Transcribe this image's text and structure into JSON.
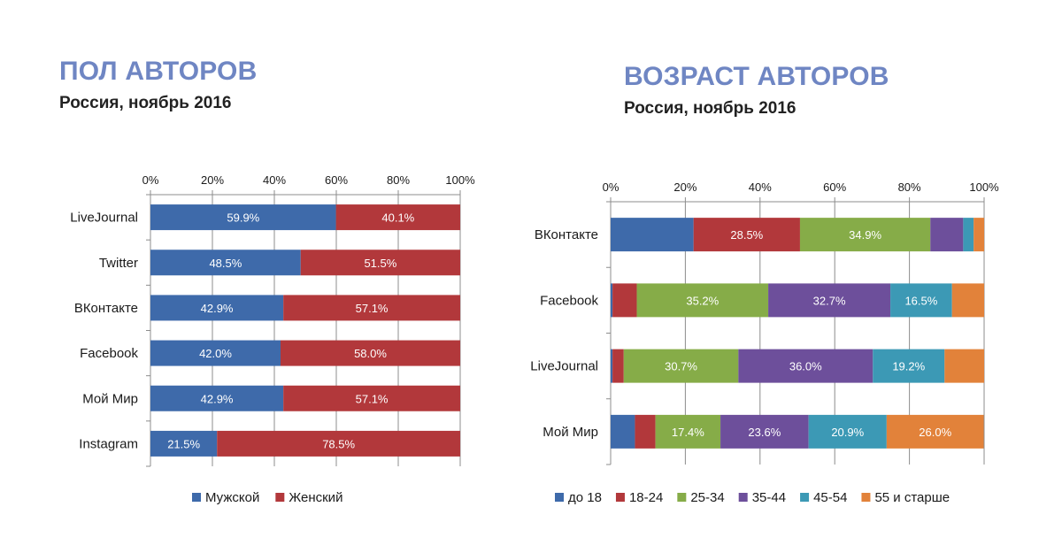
{
  "chart_data": [
    {
      "type": "bar",
      "orientation": "horizontal",
      "stacked": true,
      "title": "ПОЛ АВТОРОВ",
      "subtitle": "Россия, ноябрь 2016",
      "x_ticks": [
        "0%",
        "20%",
        "40%",
        "60%",
        "80%",
        "100%"
      ],
      "xlim": [
        0,
        100
      ],
      "x_axis_position": "top",
      "grid": true,
      "legend": "bottom",
      "categories": [
        "LiveJournal",
        "Twitter",
        "ВКонтакте",
        "Facebook",
        "Мой Мир",
        "Instagram"
      ],
      "series": [
        {
          "name": "Мужской",
          "color": "#3e6aaa",
          "values": [
            59.9,
            48.5,
            42.9,
            42.0,
            42.9,
            21.5
          ],
          "labels": [
            "59.9%",
            "48.5%",
            "42.9%",
            "42.0%",
            "42.9%",
            "21.5%"
          ]
        },
        {
          "name": "Женский",
          "color": "#b2383b",
          "values": [
            40.1,
            51.5,
            57.1,
            58.0,
            57.1,
            78.5
          ],
          "labels": [
            "40.1%",
            "51.5%",
            "57.1%",
            "58.0%",
            "57.1%",
            "78.5%"
          ]
        }
      ]
    },
    {
      "type": "bar",
      "orientation": "horizontal",
      "stacked": true,
      "title": "ВОЗРАСТ АВТОРОВ",
      "subtitle": "Россия, ноябрь 2016",
      "x_ticks": [
        "0%",
        "20%",
        "40%",
        "60%",
        "80%",
        "100%"
      ],
      "xlim": [
        0,
        100
      ],
      "x_axis_position": "top",
      "grid": true,
      "legend": "bottom",
      "categories": [
        "ВКонтакте",
        "Facebook",
        "LiveJournal",
        "Мой Мир"
      ],
      "series": [
        {
          "name": "до 18",
          "color": "#3e6aaa",
          "values": [
            22.2,
            0.5,
            0.5,
            6.5
          ],
          "labels": [
            "",
            "",
            "",
            ""
          ]
        },
        {
          "name": "18-24",
          "color": "#b2383b",
          "values": [
            28.5,
            6.5,
            3.0,
            5.5
          ],
          "labels": [
            "28.5%",
            "",
            "",
            ""
          ]
        },
        {
          "name": "25-34",
          "color": "#86ac48",
          "values": [
            34.9,
            35.2,
            30.7,
            17.4
          ],
          "labels": [
            "34.9%",
            "35.2%",
            "30.7%",
            "17.4%"
          ]
        },
        {
          "name": "35-44",
          "color": "#6d4f9b",
          "values": [
            8.8,
            32.7,
            36.0,
            23.6
          ],
          "labels": [
            "",
            "32.7%",
            "36.0%",
            "23.6%"
          ]
        },
        {
          "name": "45-54",
          "color": "#3c99b5",
          "values": [
            2.8,
            16.5,
            19.2,
            20.9
          ],
          "labels": [
            "",
            "16.5%",
            "19.2%",
            "20.9%"
          ]
        },
        {
          "name": "55 и старше",
          "color": "#e2823a",
          "values": [
            2.8,
            8.6,
            10.6,
            26.0
          ],
          "labels": [
            "",
            "",
            "",
            "26.0%"
          ]
        }
      ]
    }
  ]
}
